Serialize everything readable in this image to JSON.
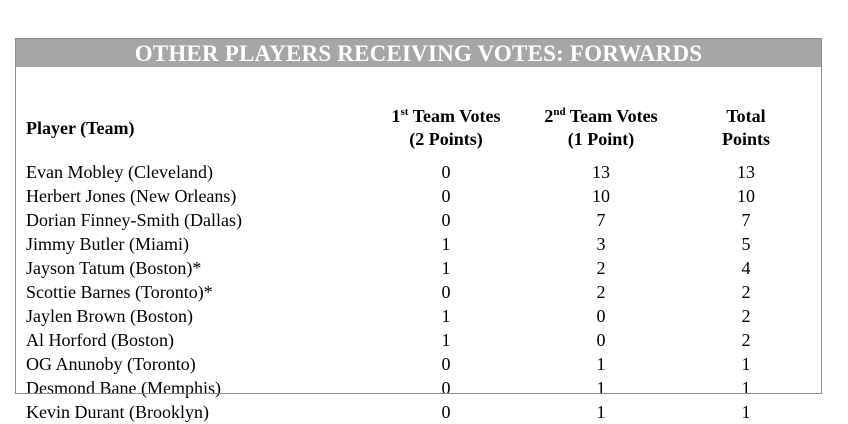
{
  "title": "OTHER PLAYERS RECEIVING VOTES: FORWARDS",
  "columns": {
    "player": "Player (Team)",
    "first": {
      "line1_base": "1",
      "line1_sup": "st",
      "line1_rest": " Team Votes",
      "line2": "(2 Points)"
    },
    "second": {
      "line1_base": "2",
      "line1_sup": "nd",
      "line1_rest": " Team Votes",
      "line2": "(1 Point)"
    },
    "total": {
      "line1": "Total",
      "line2": "Points"
    }
  },
  "rows": [
    {
      "player": "Evan Mobley (Cleveland)",
      "first": "0",
      "second": "13",
      "total": "13"
    },
    {
      "player": "Herbert Jones (New Orleans)",
      "first": "0",
      "second": "10",
      "total": "10"
    },
    {
      "player": "Dorian Finney-Smith (Dallas)",
      "first": "0",
      "second": "7",
      "total": "7"
    },
    {
      "player": "Jimmy Butler (Miami)",
      "first": "1",
      "second": "3",
      "total": "5"
    },
    {
      "player": "Jayson Tatum (Boston)*",
      "first": "1",
      "second": "2",
      "total": "4"
    },
    {
      "player": "Scottie Barnes (Toronto)*",
      "first": "0",
      "second": "2",
      "total": "2"
    },
    {
      "player": "Jaylen Brown (Boston)",
      "first": "1",
      "second": "0",
      "total": "2"
    },
    {
      "player": "Al Horford (Boston)",
      "first": "1",
      "second": "0",
      "total": "2"
    },
    {
      "player": "OG Anunoby (Toronto)",
      "first": "0",
      "second": "1",
      "total": "1"
    },
    {
      "player": "Desmond Bane (Memphis)",
      "first": "0",
      "second": "1",
      "total": "1"
    },
    {
      "player": "Kevin Durant (Brooklyn)",
      "first": "0",
      "second": "1",
      "total": "1"
    }
  ],
  "colors": {
    "title_bar": "#a6a6a6",
    "title_text": "#ffffff",
    "border": "#8c8c8c"
  }
}
